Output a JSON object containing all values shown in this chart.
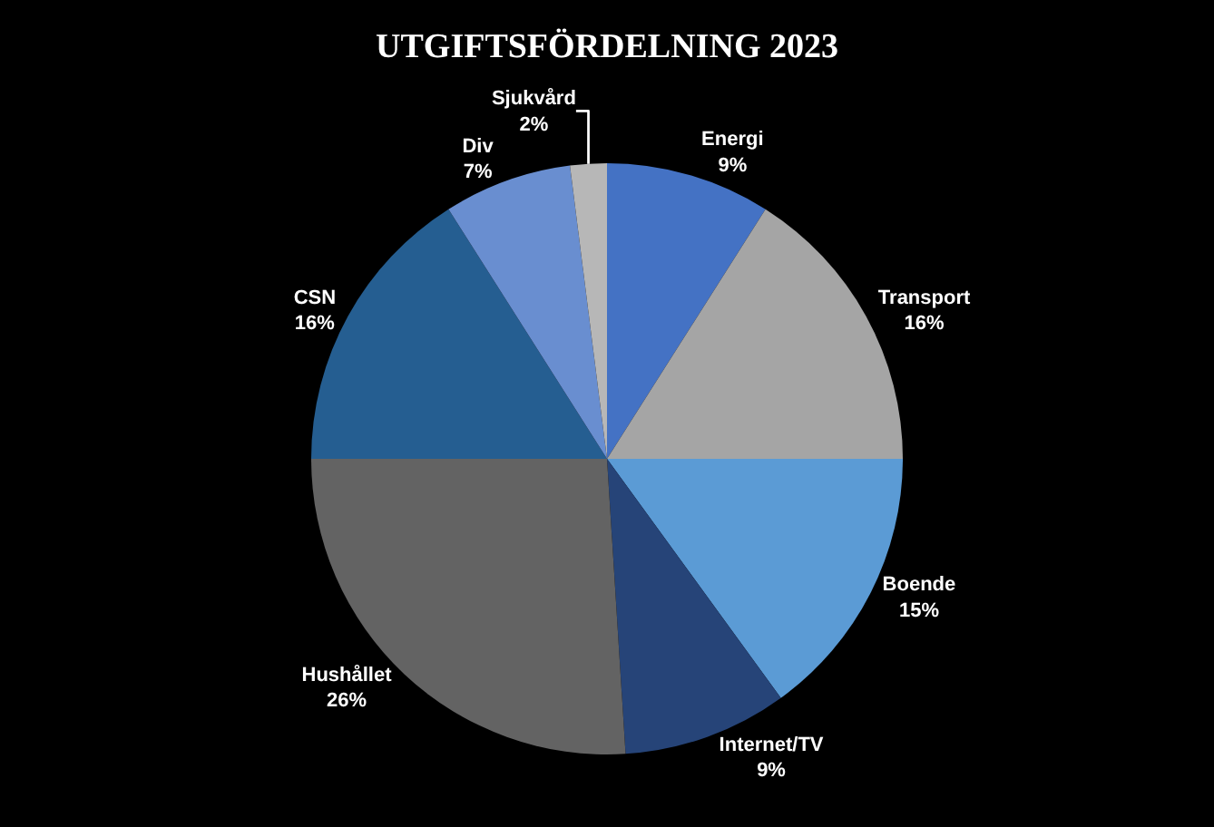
{
  "chart_data": {
    "type": "pie",
    "title": "UTGIFTSFÖRDELNING 2023",
    "categories": [
      "Energi",
      "Transport",
      "Boende",
      "Internet/TV",
      "Hushållet",
      "CSN",
      "Div",
      "Sjukvård"
    ],
    "values": [
      9,
      16,
      15,
      9,
      26,
      16,
      7,
      2
    ],
    "value_labels": [
      "9%",
      "16%",
      "15%",
      "9%",
      "26%",
      "16%",
      "7%",
      "2%"
    ],
    "colors": [
      "#4472c4",
      "#a5a5a5",
      "#5b9bd5",
      "#264478",
      "#636363",
      "#255e91",
      "#698ed0",
      "#b7b7b7"
    ],
    "legend": false
  }
}
